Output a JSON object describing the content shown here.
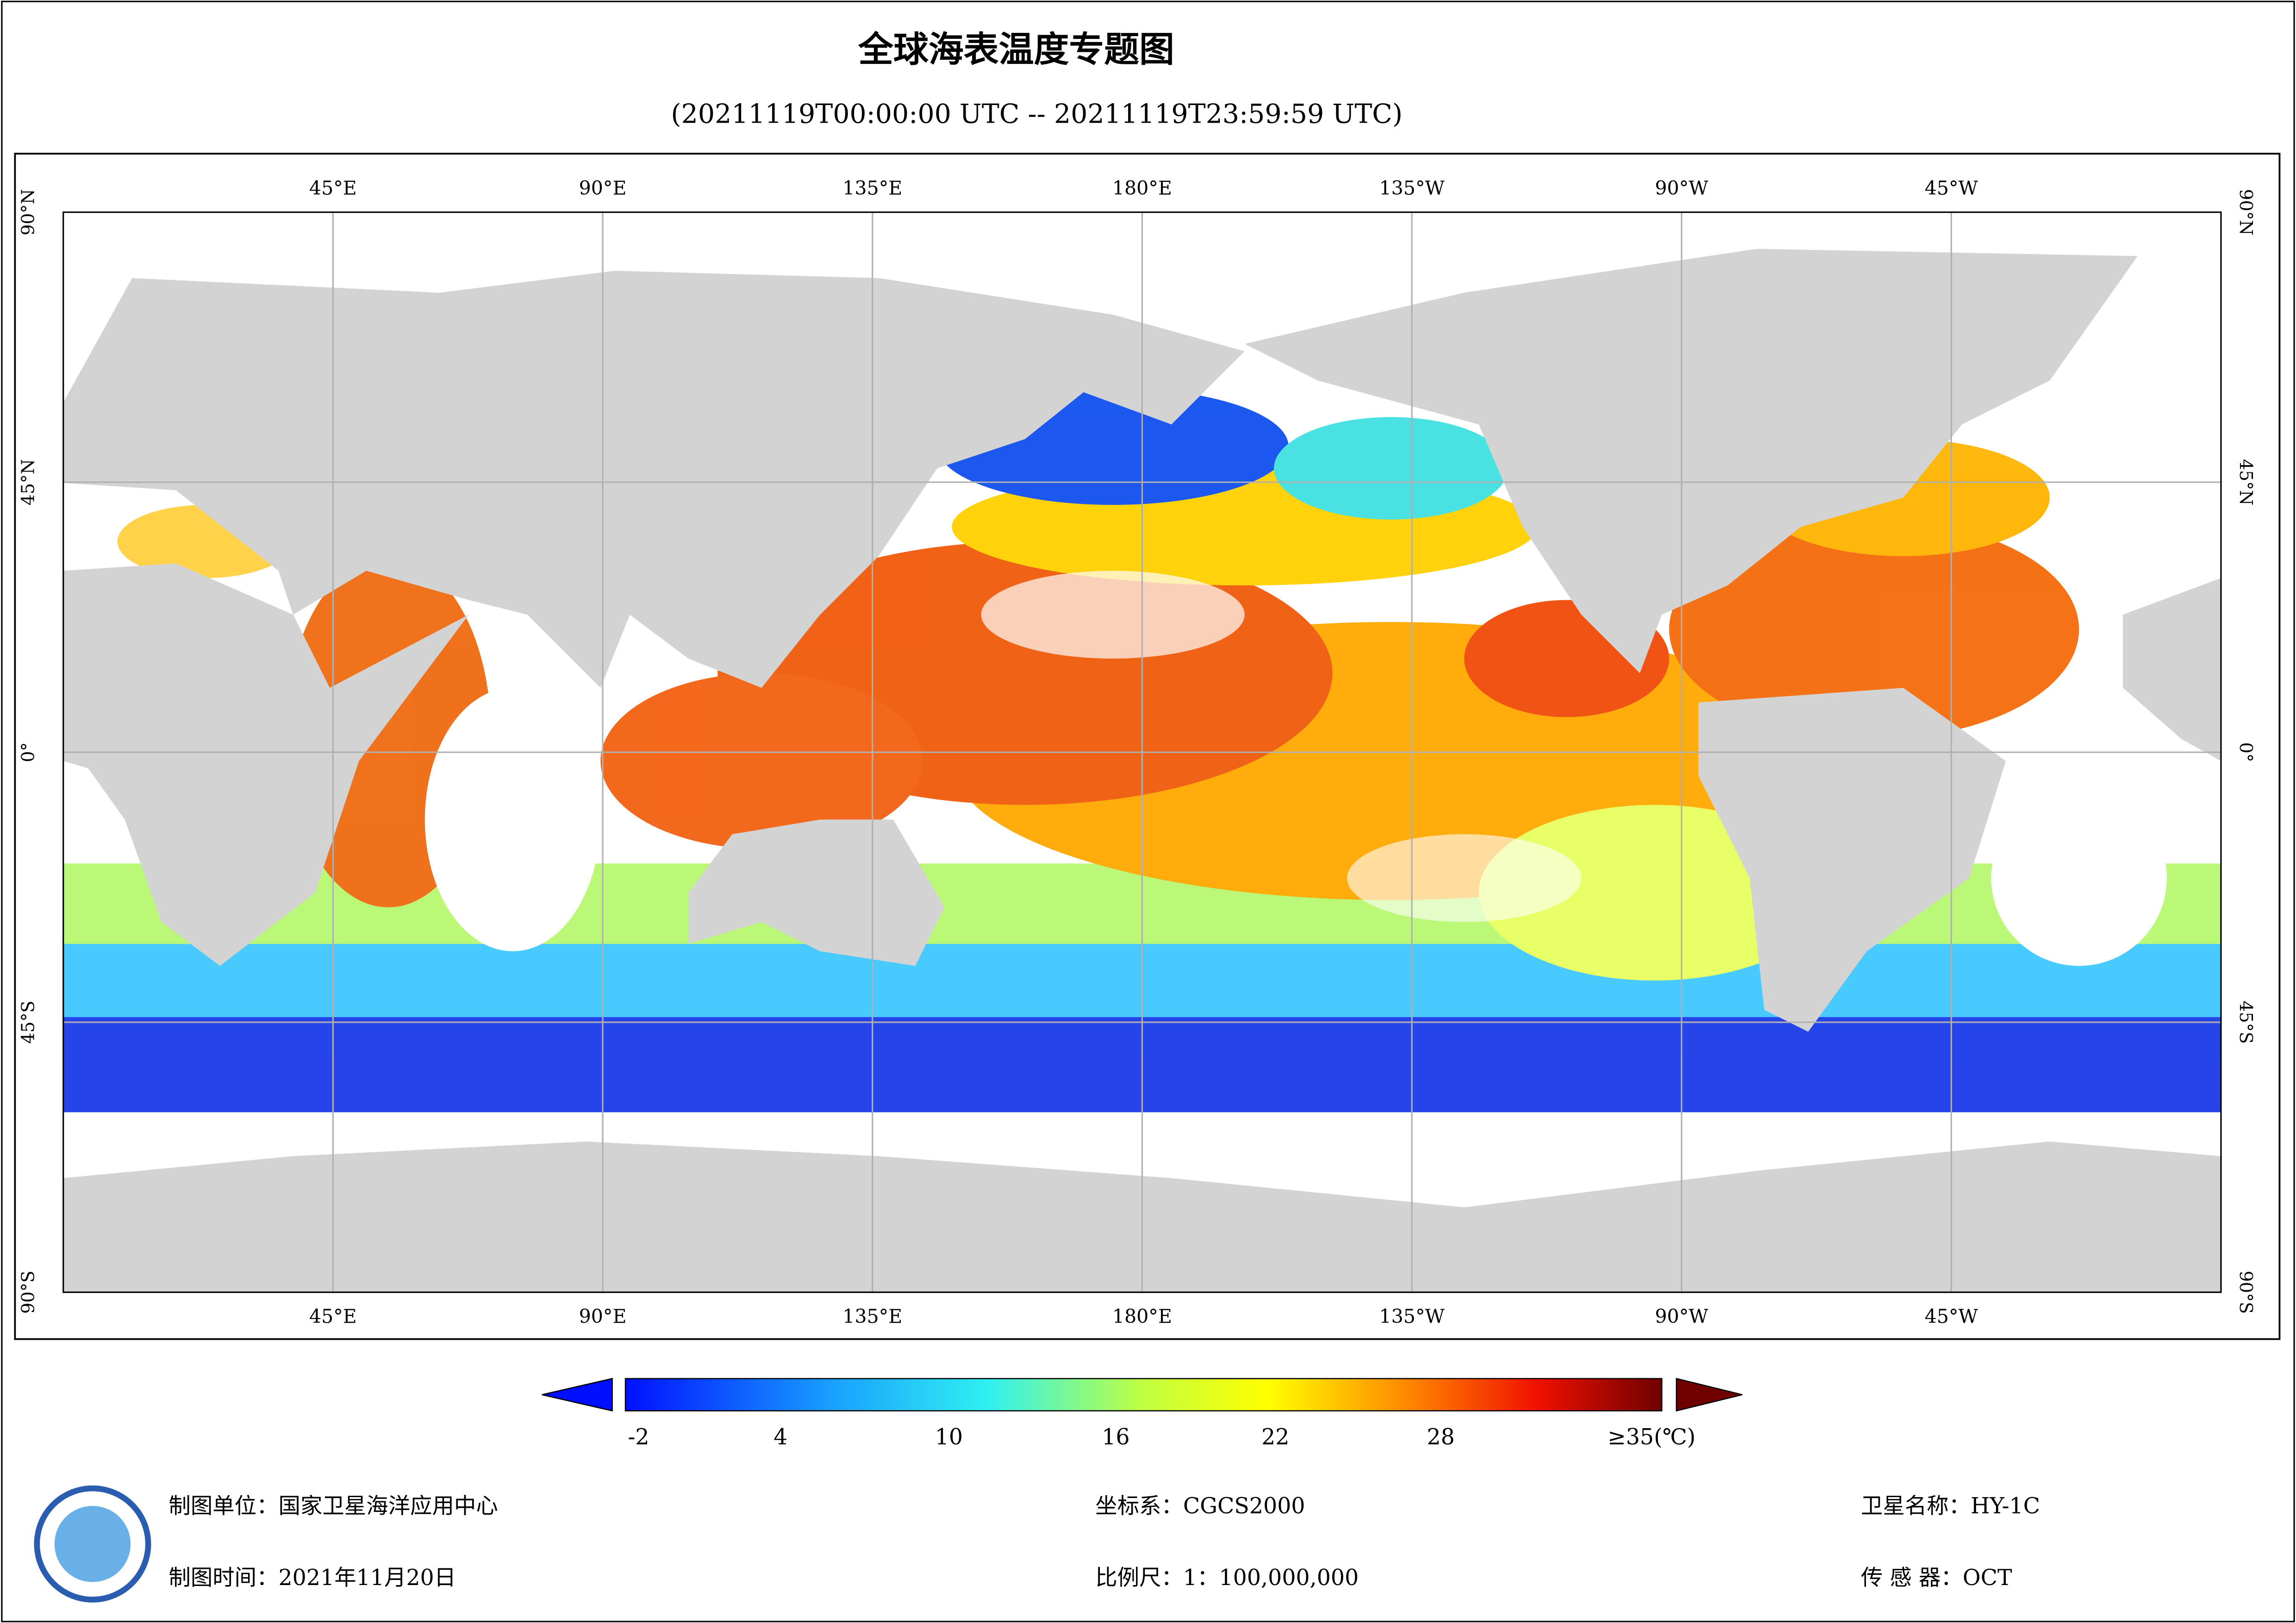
{
  "header": {
    "title": "全球海表温度专题图",
    "subtitle": "(20211119T00:00:00 UTC -- 20211119T23:59:59 UTC)"
  },
  "map": {
    "longitude_labels": [
      "45°E",
      "90°E",
      "135°E",
      "180°E",
      "135°W",
      "90°W",
      "45°W"
    ],
    "latitude_labels": [
      "90°N",
      "45°N",
      "0°",
      "45°S",
      "90°S"
    ]
  },
  "colorbar": {
    "tick_labels": [
      "-2",
      "4",
      "10",
      "16",
      "22",
      "28",
      "≥35(℃)"
    ]
  },
  "footer": {
    "unit": "制图单位：国家卫星海洋应用中心",
    "date": "制图时间：2021年11月20日",
    "crs": "坐标系：CGCS2000",
    "scale": "比例尺：1：100,000,000",
    "satellite": "卫星名称：HY-1C",
    "sensor": "传 感 器：OCT"
  }
}
